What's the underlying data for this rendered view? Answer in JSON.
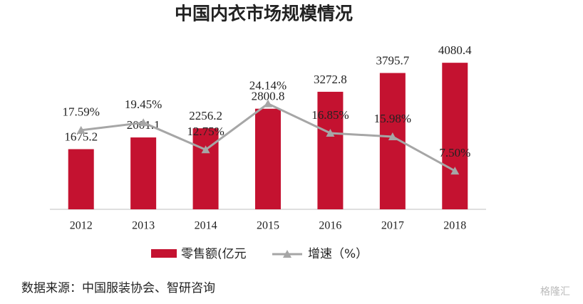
{
  "chart_data": {
    "type": "bar-line",
    "title": "中国内衣市场规模情况",
    "categories": [
      "2012",
      "2013",
      "2014",
      "2015",
      "2016",
      "2017",
      "2018"
    ],
    "series": [
      {
        "name": "零售额(亿元",
        "color": "#c41230",
        "values": [
          1675.2,
          2001.1,
          2256.2,
          2800.8,
          3272.8,
          3795.7,
          4080.4
        ]
      },
      {
        "name": "增速（%）",
        "color": "#a6a6a6",
        "axis": "y2",
        "values": [
          17.59,
          19.45,
          12.75,
          24.14,
          16.85,
          15.98,
          7.5
        ],
        "value_labels": [
          "17.59%",
          "19.45%",
          "12.75%",
          "24.14%",
          "16.85%",
          "15.98%",
          "7.50%"
        ]
      }
    ],
    "ylim": [
      0,
      4500
    ],
    "y2lim": [
      -2,
      38
    ],
    "source": "数据来源：中国服装协会、智研咨询",
    "watermark": "格隆汇"
  }
}
